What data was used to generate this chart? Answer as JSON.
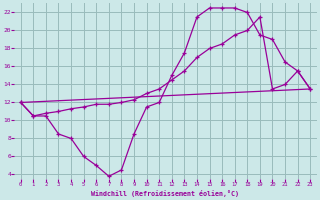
{
  "bg_color": "#cce8e8",
  "line_color": "#990099",
  "grid_color": "#99bbbb",
  "xlabel": "Windchill (Refroidissement éolien,°C)",
  "xlim": [
    -0.5,
    23.5
  ],
  "ylim": [
    3.5,
    23
  ],
  "yticks": [
    4,
    6,
    8,
    10,
    12,
    14,
    16,
    18,
    20,
    22
  ],
  "xticks": [
    0,
    1,
    2,
    3,
    4,
    5,
    6,
    7,
    8,
    9,
    10,
    11,
    12,
    13,
    14,
    15,
    16,
    17,
    18,
    19,
    20,
    21,
    22,
    23
  ],
  "line1_x": [
    0,
    1,
    2,
    3,
    4,
    5,
    6,
    7,
    8,
    9,
    10,
    11,
    12,
    13,
    14,
    15,
    16,
    17,
    18,
    19,
    20,
    21,
    22,
    23
  ],
  "line1_y": [
    12,
    10.5,
    10.5,
    8.5,
    8,
    6,
    5,
    3.8,
    4.5,
    8.5,
    11.5,
    12,
    15,
    17.5,
    21.5,
    22.5,
    22.5,
    22.5,
    22,
    19.5,
    19.0,
    16.5,
    15.5,
    13.5
  ],
  "line2_x": [
    0,
    1,
    2,
    3,
    4,
    5,
    6,
    7,
    8,
    9,
    10,
    11,
    12,
    13,
    14,
    15,
    16,
    17,
    18,
    19,
    20,
    21,
    22,
    23
  ],
  "line2_y": [
    12,
    10.5,
    10.8,
    11,
    11.3,
    11.5,
    11.8,
    11.8,
    12,
    12.3,
    13,
    13.5,
    14.5,
    15.5,
    17,
    18,
    18.5,
    19.5,
    20,
    21.5,
    13.5,
    14,
    15.5,
    13.5
  ],
  "line3_x": [
    0,
    23
  ],
  "line3_y": [
    12,
    13.5
  ]
}
